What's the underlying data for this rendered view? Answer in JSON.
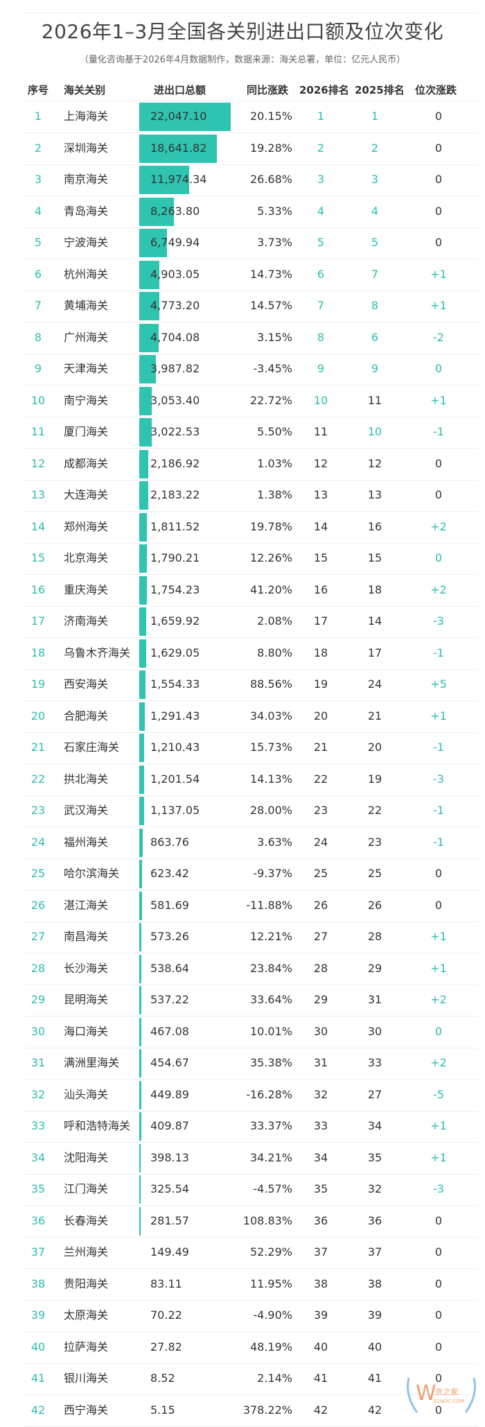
{
  "title": "2026年1–3月全国各关别进出口额及位次变化",
  "subtitle": "（量化咨询基于2026年4月数据制作，数据来源：海关总署，单位：亿元人民币）",
  "headers": [
    "序号",
    "海关关别",
    "进出口总额",
    "同比涨跌",
    "2026排名",
    "2025排名",
    "位次涨跌"
  ],
  "accent_color": "#2ec4b0",
  "watermark": {
    "logo": "W货之家",
    "site": "51W2C.COM"
  },
  "rows": [
    {
      "seq": "1",
      "name": "上海海关",
      "total": "22,047.10",
      "value": 22047.1,
      "yoy": "20.15%",
      "r26": "1",
      "r25": "1",
      "chg": "0"
    },
    {
      "seq": "2",
      "name": "深圳海关",
      "total": "18,641.82",
      "value": 18641.82,
      "yoy": "19.28%",
      "r26": "2",
      "r25": "2",
      "chg": "0"
    },
    {
      "seq": "3",
      "name": "南京海关",
      "total": "11,974.34",
      "value": 11974.34,
      "yoy": "26.68%",
      "r26": "3",
      "r25": "3",
      "chg": "0"
    },
    {
      "seq": "4",
      "name": "青岛海关",
      "total": "8,263.80",
      "value": 8263.8,
      "yoy": "5.33%",
      "r26": "4",
      "r25": "4",
      "chg": "0"
    },
    {
      "seq": "5",
      "name": "宁波海关",
      "total": "6,749.94",
      "value": 6749.94,
      "yoy": "3.73%",
      "r26": "5",
      "r25": "5",
      "chg": "0"
    },
    {
      "seq": "6",
      "name": "杭州海关",
      "total": "4,903.05",
      "value": 4903.05,
      "yoy": "14.73%",
      "r26": "6",
      "r25": "7",
      "chg": "+1"
    },
    {
      "seq": "7",
      "name": "黄埔海关",
      "total": "4,773.20",
      "value": 4773.2,
      "yoy": "14.57%",
      "r26": "7",
      "r25": "8",
      "chg": "+1"
    },
    {
      "seq": "8",
      "name": "广州海关",
      "total": "4,704.08",
      "value": 4704.08,
      "yoy": "3.15%",
      "r26": "8",
      "r25": "6",
      "chg": "-2"
    },
    {
      "seq": "9",
      "name": "天津海关",
      "total": "3,987.82",
      "value": 3987.82,
      "yoy": "-3.45%",
      "r26": "9",
      "r25": "9",
      "chg": "0",
      "chg_teal": true
    },
    {
      "seq": "10",
      "name": "南宁海关",
      "total": "3,053.40",
      "value": 3053.4,
      "yoy": "22.72%",
      "r26": "10",
      "r25": "11",
      "chg": "+1"
    },
    {
      "seq": "11",
      "name": "厦门海关",
      "total": "3,022.53",
      "value": 3022.53,
      "yoy": "5.50%",
      "r26": "11",
      "r25": "10",
      "chg": "-1"
    },
    {
      "seq": "12",
      "name": "成都海关",
      "total": "2,186.92",
      "value": 2186.92,
      "yoy": "1.03%",
      "r26": "12",
      "r25": "12",
      "chg": "0"
    },
    {
      "seq": "13",
      "name": "大连海关",
      "total": "2,183.22",
      "value": 2183.22,
      "yoy": "1.38%",
      "r26": "13",
      "r25": "13",
      "chg": "0"
    },
    {
      "seq": "14",
      "name": "郑州海关",
      "total": "1,811.52",
      "value": 1811.52,
      "yoy": "19.78%",
      "r26": "14",
      "r25": "16",
      "chg": "+2"
    },
    {
      "seq": "15",
      "name": "北京海关",
      "total": "1,790.21",
      "value": 1790.21,
      "yoy": "12.26%",
      "r26": "15",
      "r25": "15",
      "chg": "0",
      "chg_teal": true
    },
    {
      "seq": "16",
      "name": "重庆海关",
      "total": "1,754.23",
      "value": 1754.23,
      "yoy": "41.20%",
      "r26": "16",
      "r25": "18",
      "chg": "+2"
    },
    {
      "seq": "17",
      "name": "济南海关",
      "total": "1,659.92",
      "value": 1659.92,
      "yoy": "2.08%",
      "r26": "17",
      "r25": "14",
      "chg": "-3"
    },
    {
      "seq": "18",
      "name": "乌鲁木齐海关",
      "total": "1,629.05",
      "value": 1629.05,
      "yoy": "8.80%",
      "r26": "18",
      "r25": "17",
      "chg": "-1"
    },
    {
      "seq": "19",
      "name": "西安海关",
      "total": "1,554.33",
      "value": 1554.33,
      "yoy": "88.56%",
      "r26": "19",
      "r25": "24",
      "chg": "+5"
    },
    {
      "seq": "20",
      "name": "合肥海关",
      "total": "1,291.43",
      "value": 1291.43,
      "yoy": "34.03%",
      "r26": "20",
      "r25": "21",
      "chg": "+1"
    },
    {
      "seq": "21",
      "name": "石家庄海关",
      "total": "1,210.43",
      "value": 1210.43,
      "yoy": "15.73%",
      "r26": "21",
      "r25": "20",
      "chg": "-1"
    },
    {
      "seq": "22",
      "name": "拱北海关",
      "total": "1,201.54",
      "value": 1201.54,
      "yoy": "14.13%",
      "r26": "22",
      "r25": "19",
      "chg": "-3"
    },
    {
      "seq": "23",
      "name": "武汉海关",
      "total": "1,137.05",
      "value": 1137.05,
      "yoy": "28.00%",
      "r26": "23",
      "r25": "22",
      "chg": "-1"
    },
    {
      "seq": "24",
      "name": "福州海关",
      "total": "863.76",
      "value": 863.76,
      "yoy": "3.63%",
      "r26": "24",
      "r25": "23",
      "chg": "-1"
    },
    {
      "seq": "25",
      "name": "哈尔滨海关",
      "total": "623.42",
      "value": 623.42,
      "yoy": "-9.37%",
      "r26": "25",
      "r25": "25",
      "chg": "0"
    },
    {
      "seq": "26",
      "name": "湛江海关",
      "total": "581.69",
      "value": 581.69,
      "yoy": "-11.88%",
      "r26": "26",
      "r25": "26",
      "chg": "0"
    },
    {
      "seq": "27",
      "name": "南昌海关",
      "total": "573.26",
      "value": 573.26,
      "yoy": "12.21%",
      "r26": "27",
      "r25": "28",
      "chg": "+1"
    },
    {
      "seq": "28",
      "name": "长沙海关",
      "total": "538.64",
      "value": 538.64,
      "yoy": "23.84%",
      "r26": "28",
      "r25": "29",
      "chg": "+1"
    },
    {
      "seq": "29",
      "name": "昆明海关",
      "total": "537.22",
      "value": 537.22,
      "yoy": "33.64%",
      "r26": "29",
      "r25": "31",
      "chg": "+2"
    },
    {
      "seq": "30",
      "name": "海口海关",
      "total": "467.08",
      "value": 467.08,
      "yoy": "10.01%",
      "r26": "30",
      "r25": "30",
      "chg": "0",
      "chg_teal": true
    },
    {
      "seq": "31",
      "name": "满洲里海关",
      "total": "454.67",
      "value": 454.67,
      "yoy": "35.38%",
      "r26": "31",
      "r25": "33",
      "chg": "+2"
    },
    {
      "seq": "32",
      "name": "汕头海关",
      "total": "449.89",
      "value": 449.89,
      "yoy": "-16.28%",
      "r26": "32",
      "r25": "27",
      "chg": "-5"
    },
    {
      "seq": "33",
      "name": "呼和浩特海关",
      "total": "409.87",
      "value": 409.87,
      "yoy": "33.37%",
      "r26": "33",
      "r25": "34",
      "chg": "+1"
    },
    {
      "seq": "34",
      "name": "沈阳海关",
      "total": "398.13",
      "value": 398.13,
      "yoy": "34.21%",
      "r26": "34",
      "r25": "35",
      "chg": "+1"
    },
    {
      "seq": "35",
      "name": "江门海关",
      "total": "325.54",
      "value": 325.54,
      "yoy": "-4.57%",
      "r26": "35",
      "r25": "32",
      "chg": "-3"
    },
    {
      "seq": "36",
      "name": "长春海关",
      "total": "281.57",
      "value": 281.57,
      "yoy": "108.83%",
      "r26": "36",
      "r25": "36",
      "chg": "0"
    },
    {
      "seq": "37",
      "name": "兰州海关",
      "total": "149.49",
      "value": 149.49,
      "yoy": "52.29%",
      "r26": "37",
      "r25": "37",
      "chg": "0"
    },
    {
      "seq": "38",
      "name": "贵阳海关",
      "total": "83.11",
      "value": 83.11,
      "yoy": "11.95%",
      "r26": "38",
      "r25": "38",
      "chg": "0"
    },
    {
      "seq": "39",
      "name": "太原海关",
      "total": "70.22",
      "value": 70.22,
      "yoy": "-4.90%",
      "r26": "39",
      "r25": "39",
      "chg": "0"
    },
    {
      "seq": "40",
      "name": "拉萨海关",
      "total": "27.82",
      "value": 27.82,
      "yoy": "48.19%",
      "r26": "40",
      "r25": "40",
      "chg": "0"
    },
    {
      "seq": "41",
      "name": "银川海关",
      "total": "8.52",
      "value": 8.52,
      "yoy": "2.14%",
      "r26": "41",
      "r25": "41",
      "chg": "0"
    },
    {
      "seq": "42",
      "name": "西宁海关",
      "total": "5.15",
      "value": 5.15,
      "yoy": "378.22%",
      "r26": "42",
      "r25": "42",
      "chg": "0"
    }
  ]
}
